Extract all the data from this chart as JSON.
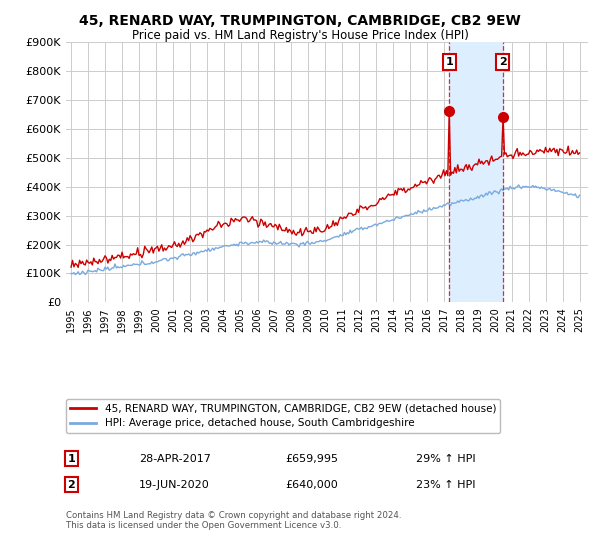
{
  "title": "45, RENARD WAY, TRUMPINGTON, CAMBRIDGE, CB2 9EW",
  "subtitle": "Price paid vs. HM Land Registry's House Price Index (HPI)",
  "legend_line1": "45, RENARD WAY, TRUMPINGTON, CAMBRIDGE, CB2 9EW (detached house)",
  "legend_line2": "HPI: Average price, detached house, South Cambridgeshire",
  "transaction1_date": "28-APR-2017",
  "transaction1_price": "£659,995",
  "transaction1_hpi": "29% ↑ HPI",
  "transaction1_year": 2017.32,
  "transaction1_value": 659995,
  "transaction2_date": "19-JUN-2020",
  "transaction2_price": "£640,000",
  "transaction2_hpi": "23% ↑ HPI",
  "transaction2_year": 2020.46,
  "transaction2_value": 640000,
  "footer": "Contains HM Land Registry data © Crown copyright and database right 2024.\nThis data is licensed under the Open Government Licence v3.0.",
  "ylim": [
    0,
    900000
  ],
  "yticks": [
    0,
    100000,
    200000,
    300000,
    400000,
    500000,
    600000,
    700000,
    800000,
    900000
  ],
  "xlim_start": 1994.7,
  "xlim_end": 2025.5,
  "red_color": "#cc0000",
  "blue_color": "#7aaadd",
  "shade_color": "#ddeeff",
  "background_color": "#ffffff",
  "grid_color": "#cccccc"
}
